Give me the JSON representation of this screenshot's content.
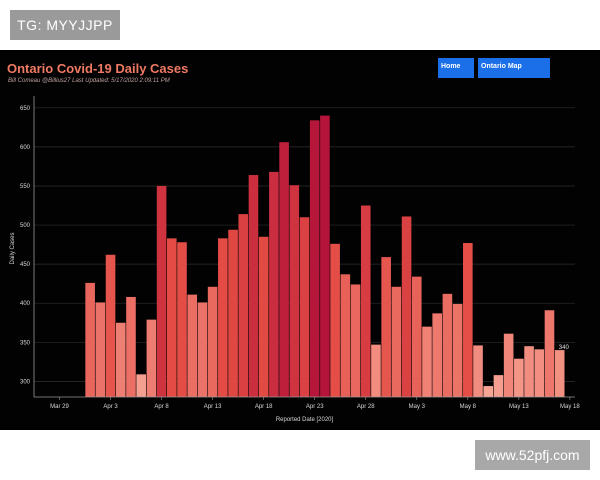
{
  "watermark_top": "TG: MYYJJPP",
  "watermark_bottom": "www.52pfj.com",
  "dashboard": {
    "title": "Ontario Covid-19 Daily Cases",
    "subtitle": "Bill Comeau @Billius27   Last Updated: 5/17/2020 2:09:11 PM",
    "buttons": {
      "home": "Home",
      "map": "Ontario Map"
    }
  },
  "chart_data": {
    "type": "bar",
    "title": "Ontario Covid-19 Daily Cases",
    "xlabel": "Reported Date [2020]",
    "ylabel": "Daily Cases",
    "ylim": [
      280,
      660
    ],
    "yticks": [
      300,
      350,
      400,
      450,
      500,
      550,
      600,
      650
    ],
    "grid": true,
    "x_tick_labels": [
      "Mar 29",
      "Apr 3",
      "Apr 8",
      "Apr 13",
      "Apr 18",
      "Apr 23",
      "Apr 28",
      "May 3",
      "May 8",
      "May 13",
      "May 18"
    ],
    "categories": [
      "Apr 1",
      "Apr 2",
      "Apr 3",
      "Apr 4",
      "Apr 5",
      "Apr 6",
      "Apr 7",
      "Apr 8",
      "Apr 9",
      "Apr 10",
      "Apr 11",
      "Apr 12",
      "Apr 13",
      "Apr 14",
      "Apr 15",
      "Apr 16",
      "Apr 17",
      "Apr 18",
      "Apr 19",
      "Apr 20",
      "Apr 21",
      "Apr 22",
      "Apr 23",
      "Apr 24",
      "Apr 25",
      "Apr 26",
      "Apr 27",
      "Apr 28",
      "Apr 29",
      "Apr 30",
      "May 1",
      "May 2",
      "May 3",
      "May 4",
      "May 5",
      "May 6",
      "May 7",
      "May 8",
      "May 9",
      "May 10",
      "May 11",
      "May 12",
      "May 13",
      "May 14",
      "May 15",
      "May 16",
      "May 17"
    ],
    "values": [
      426,
      401,
      462,
      375,
      408,
      309,
      379,
      550,
      483,
      478,
      411,
      401,
      421,
      483,
      494,
      514,
      564,
      485,
      568,
      606,
      551,
      510,
      634,
      640,
      476,
      437,
      424,
      525,
      347,
      459,
      421,
      511,
      434,
      370,
      387,
      412,
      399,
      477,
      346,
      294,
      308,
      361,
      329,
      345,
      341,
      391,
      340
    ],
    "data_labels": [
      {
        "category": "May 17",
        "text": "340"
      }
    ],
    "color_scale": {
      "low": "#f7a898",
      "mid": "#e34b44",
      "high": "#b4143a"
    }
  }
}
